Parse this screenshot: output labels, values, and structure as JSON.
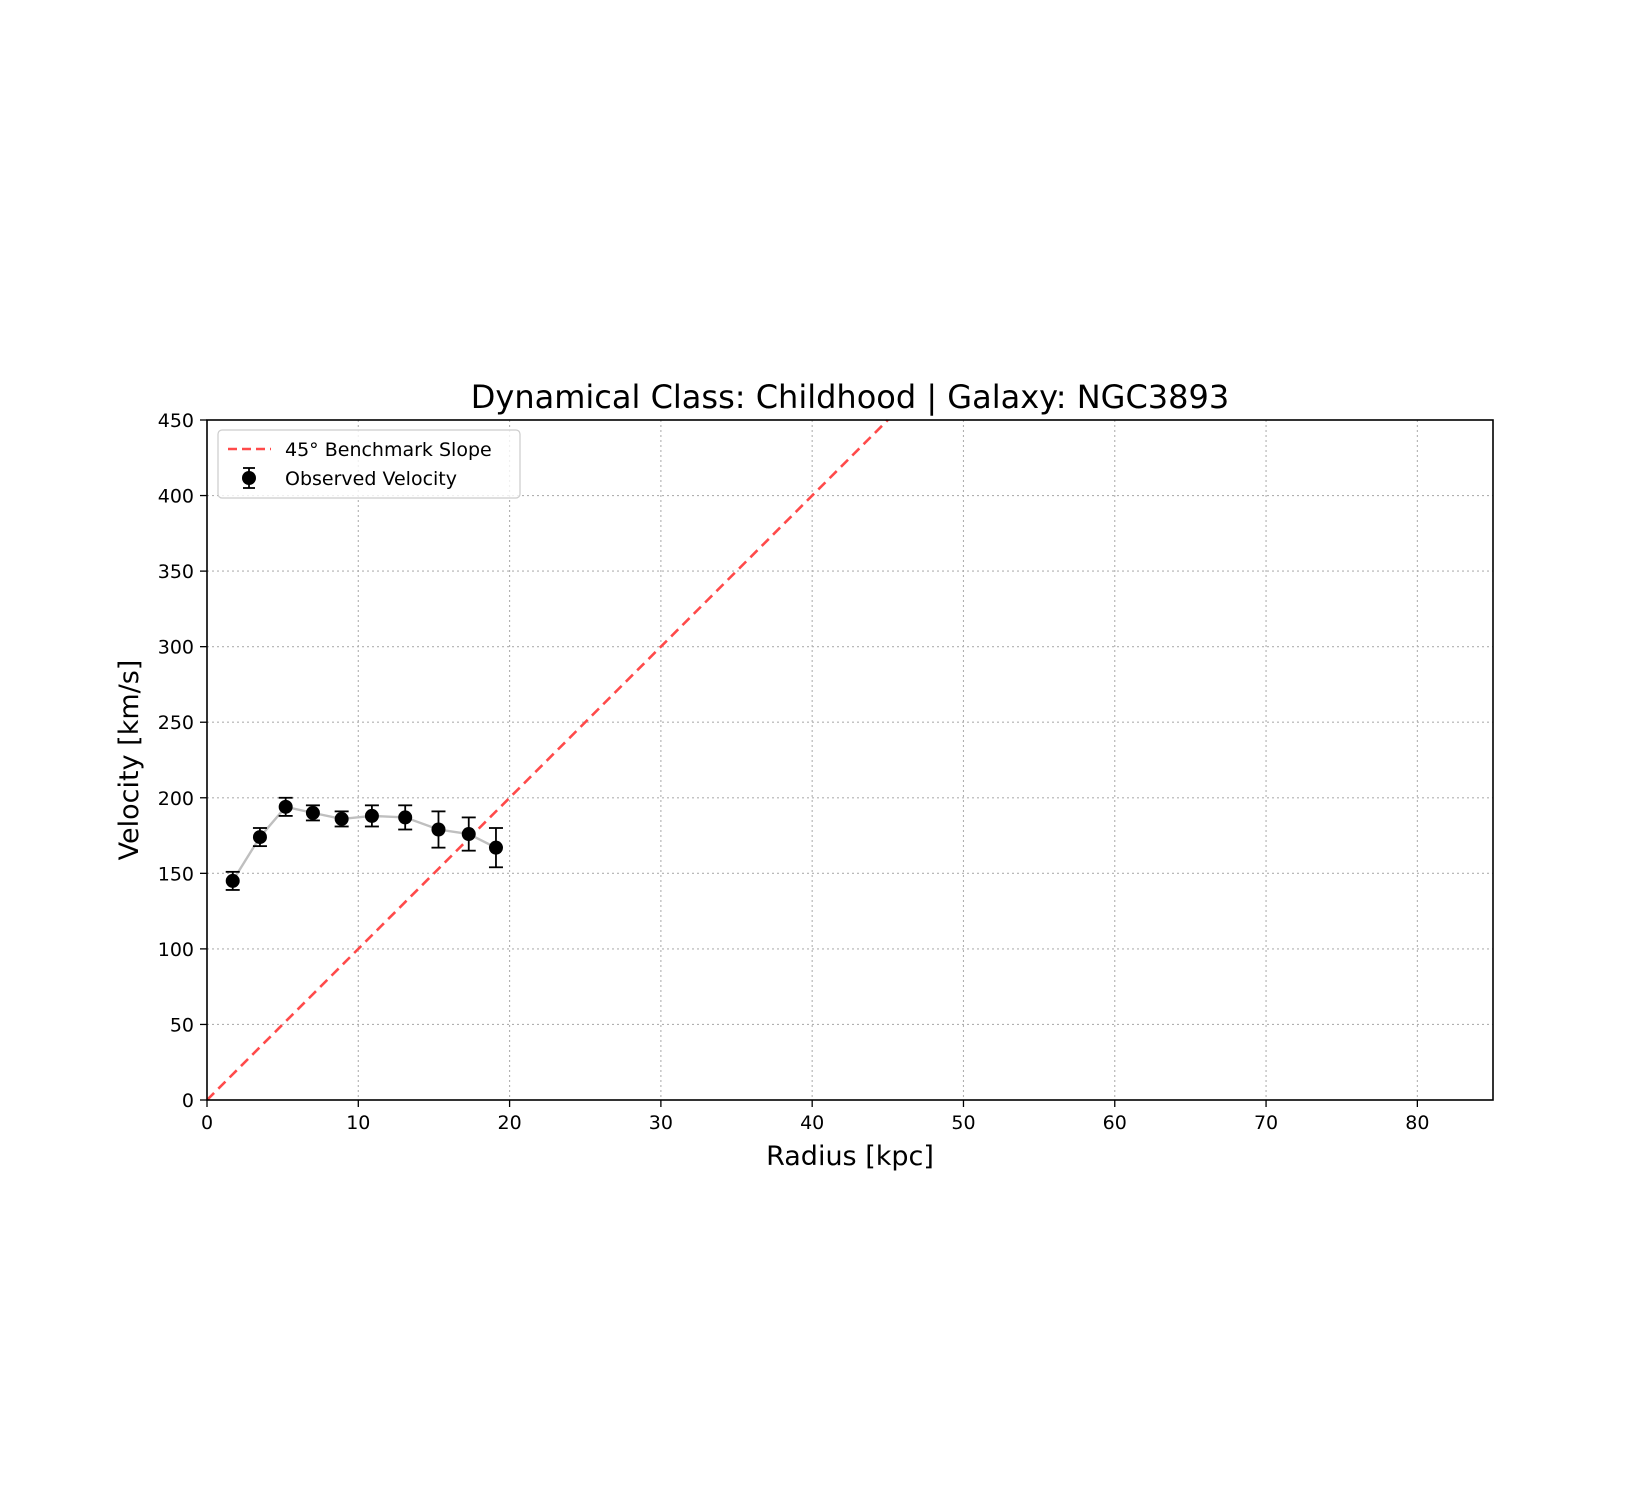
{
  "chart_data": {
    "type": "scatter",
    "title": "Dynamical Class: Childhood | Galaxy: NGC3893",
    "xlabel": "Radius [kpc]",
    "ylabel": "Velocity [km/s]",
    "xlim": [
      0,
      85
    ],
    "ylim": [
      0,
      450
    ],
    "xticks": [
      0,
      10,
      20,
      30,
      40,
      50,
      60,
      70,
      80
    ],
    "yticks": [
      0,
      50,
      100,
      150,
      200,
      250,
      300,
      350,
      400,
      450
    ],
    "grid": true,
    "legend_position": "upper-left",
    "series": [
      {
        "name": "45° Benchmark Slope",
        "kind": "dashed-line",
        "color": "#ff4a4a",
        "x": [
          0,
          45
        ],
        "y": [
          0,
          450
        ]
      },
      {
        "name": "Observed Velocity",
        "kind": "errorbar",
        "color": "#000000",
        "connector_color": "#bfbfbf",
        "x": [
          1.7,
          3.5,
          5.2,
          7.0,
          8.9,
          10.9,
          13.1,
          15.3,
          17.3,
          19.1
        ],
        "y": [
          145,
          174,
          194,
          190,
          186,
          188,
          187,
          179,
          176,
          167
        ],
        "yerr": [
          6,
          6,
          6,
          5,
          5,
          7,
          8,
          12,
          11,
          13
        ]
      }
    ]
  }
}
